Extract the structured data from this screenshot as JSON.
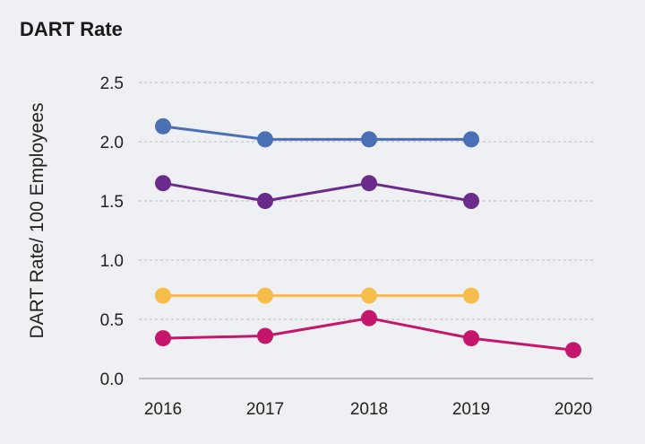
{
  "chart_data": {
    "type": "line",
    "title": "DART Rate",
    "ylabel": "DART Rate/ 100 Employees",
    "xlabel": "",
    "x": [
      "2016",
      "2017",
      "2018",
      "2019",
      "2020"
    ],
    "ylim": [
      0.0,
      2.5
    ],
    "yticks": [
      "0.0",
      "0.5",
      "1.0",
      "1.5",
      "2.0",
      "2.5"
    ],
    "grid": true,
    "series": [
      {
        "color": "#4a6fb5",
        "values": [
          2.13,
          2.02,
          2.02,
          2.02,
          null
        ]
      },
      {
        "color": "#6b2b8a",
        "values": [
          1.65,
          1.5,
          1.65,
          1.5,
          null
        ]
      },
      {
        "color": "#f7bd4b",
        "values": [
          0.7,
          0.7,
          0.7,
          0.7,
          null
        ]
      },
      {
        "color": "#c6166c",
        "values": [
          0.34,
          0.36,
          0.51,
          0.34,
          0.24
        ]
      }
    ]
  }
}
